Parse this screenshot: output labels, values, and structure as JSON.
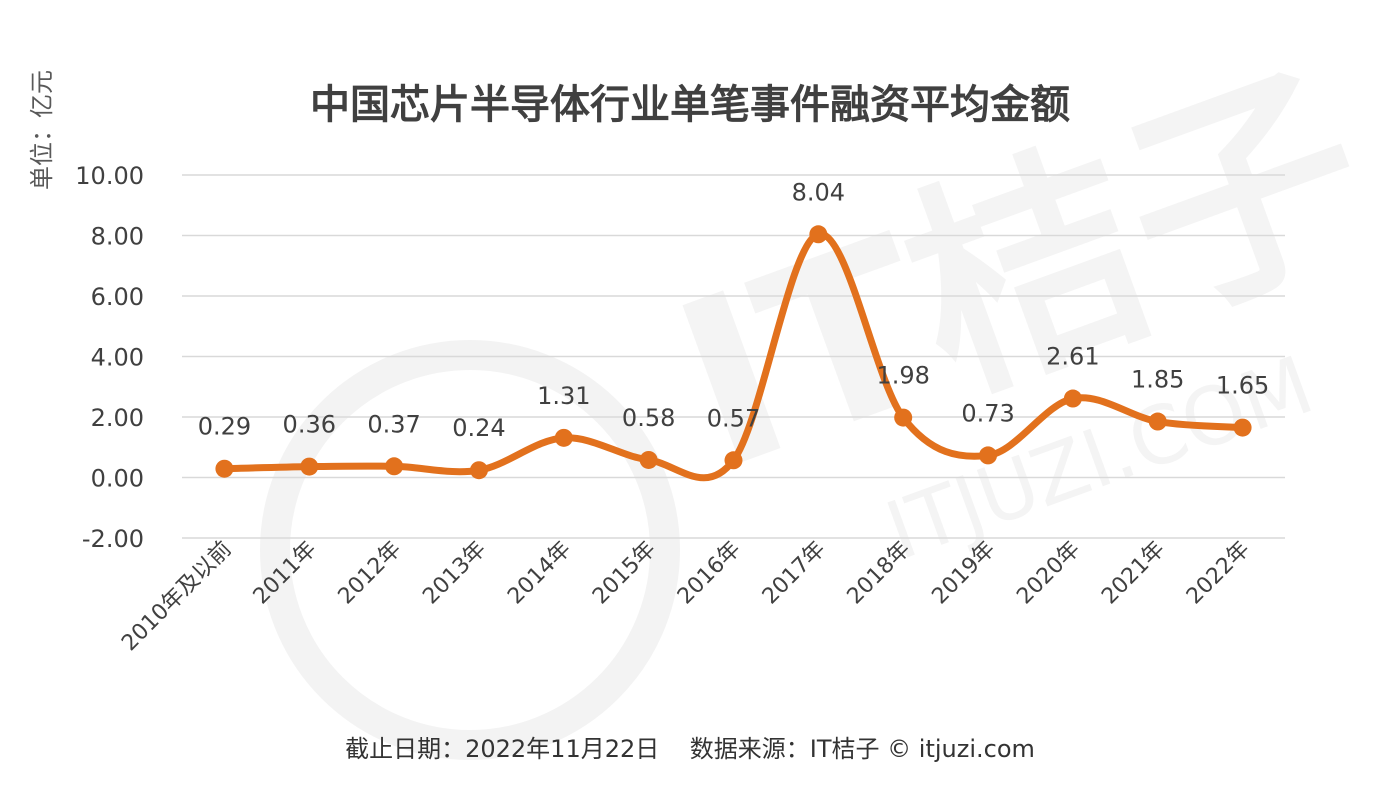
{
  "watermark": {
    "brand_text": "IT桔子",
    "domain_text": "ITJUZI.COM"
  },
  "chart_data": {
    "type": "line",
    "title": "中国芯片半导体行业单笔事件融资平均金额",
    "unit_label": "单位：亿元",
    "categories": [
      "2010年及以前",
      "2011年",
      "2012年",
      "2013年",
      "2014年",
      "2015年",
      "2016年",
      "2017年",
      "2018年",
      "2019年",
      "2020年",
      "2021年",
      "2022年"
    ],
    "values": [
      0.29,
      0.36,
      0.37,
      0.24,
      1.31,
      0.58,
      0.57,
      8.04,
      1.98,
      0.73,
      2.61,
      1.85,
      1.65
    ],
    "data_labels": [
      "0.29",
      "0.36",
      "0.37",
      "0.24",
      "1.31",
      "0.58",
      "0.57",
      "8.04",
      "1.98",
      "0.73",
      "2.61",
      "1.85",
      "1.65"
    ],
    "y_ticks": [
      "10.00",
      "8.00",
      "6.00",
      "4.00",
      "2.00",
      "0.00",
      "-2.00"
    ],
    "y_tick_values": [
      10,
      8,
      6,
      4,
      2,
      0,
      -2
    ],
    "ylim": [
      -2,
      10
    ],
    "grid": true,
    "legend": "none",
    "line_color": "#E2711D",
    "grid_color": "#d9d9d9",
    "smooth": true
  },
  "footer": {
    "text": "截止日期：2022年11月22日    数据来源：IT桔子 © itjuzi.com"
  }
}
